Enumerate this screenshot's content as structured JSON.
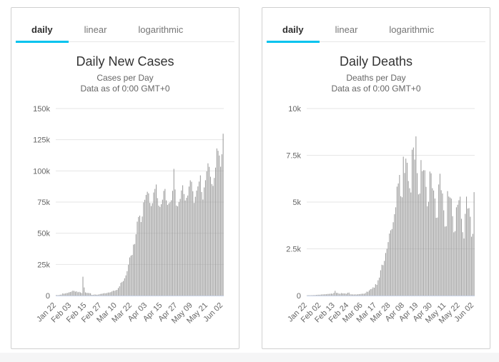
{
  "colors": {
    "accent": "#00c3ee",
    "bar": "#999999",
    "grid": "#e6e6e6",
    "axis_line": "#ccd6eb",
    "text_muted": "#666666",
    "title": "#333333",
    "tab_inactive": "#757575",
    "border": "#d0d0d0"
  },
  "panels": [
    {
      "tabs": [
        {
          "label": "daily",
          "active": true
        },
        {
          "label": "linear",
          "active": false
        },
        {
          "label": "logarithmic",
          "active": false
        }
      ]
    },
    {
      "tabs": [
        {
          "label": "daily",
          "active": true
        },
        {
          "label": "linear",
          "active": false
        },
        {
          "label": "logarithmic",
          "active": false
        }
      ]
    }
  ],
  "chart_data": [
    {
      "type": "bar",
      "title": "Daily New Cases",
      "subtitle_line1": "Cases per Day",
      "subtitle_line2": "Data as of 0:00 GMT+0",
      "xlabel": "",
      "ylabel": "",
      "ylim": [
        0,
        150000
      ],
      "grid": true,
      "legend": "none",
      "y_ticks": [
        {
          "value": 0,
          "label": "0"
        },
        {
          "value": 25000,
          "label": "25k"
        },
        {
          "value": 50000,
          "label": "50k"
        },
        {
          "value": 75000,
          "label": "75k"
        },
        {
          "value": 100000,
          "label": "100k"
        },
        {
          "value": 125000,
          "label": "125k"
        },
        {
          "value": 150000,
          "label": "150k"
        }
      ],
      "x_ticks": [
        {
          "index": 0,
          "label": "Jan 22"
        },
        {
          "index": 12,
          "label": "Feb 03"
        },
        {
          "index": 24,
          "label": "Feb 15"
        },
        {
          "index": 36,
          "label": "Feb 27"
        },
        {
          "index": 48,
          "label": "Mar 10"
        },
        {
          "index": 60,
          "label": "Mar 22"
        },
        {
          "index": 72,
          "label": "Apr 03"
        },
        {
          "index": 84,
          "label": "Apr 15"
        },
        {
          "index": 96,
          "label": "Apr 27"
        },
        {
          "index": 108,
          "label": "May 09"
        },
        {
          "index": 120,
          "label": "May 21"
        },
        {
          "index": 132,
          "label": "Jun 02"
        }
      ],
      "values": [
        500,
        260,
        470,
        700,
        790,
        1780,
        1480,
        1760,
        2000,
        2130,
        2600,
        2840,
        3240,
        3930,
        3730,
        3160,
        3420,
        2680,
        3000,
        2550,
        2020,
        15150,
        6530,
        2560,
        2150,
        2130,
        2000,
        1870,
        630,
        590,
        890,
        810,
        670,
        760,
        1050,
        1340,
        1460,
        1750,
        1960,
        1830,
        2070,
        2460,
        2470,
        2760,
        3320,
        3920,
        3800,
        4240,
        4580,
        6080,
        7490,
        10220,
        10960,
        11720,
        13900,
        16210,
        19580,
        24750,
        30600,
        32040,
        32570,
        40890,
        41380,
        49210,
        59300,
        63100,
        64100,
        58970,
        63380,
        74730,
        76850,
        80750,
        83250,
        82000,
        74320,
        71790,
        74120,
        82670,
        85550,
        89080,
        78190,
        72130,
        71090,
        73280,
        76900,
        83980,
        85530,
        76370,
        72730,
        73920,
        74900,
        76440,
        84020,
        101640,
        85130,
        72200,
        71600,
        75100,
        77520,
        84320,
        88450,
        81440,
        76230,
        78440,
        80260,
        87440,
        92420,
        91240,
        83710,
        74310,
        79240,
        84210,
        87520,
        91440,
        96420,
        83050,
        77010,
        86740,
        92510,
        99660,
        106060,
        103230,
        95300,
        89440,
        87930,
        94350,
        102610,
        117980,
        116130,
        112320,
        103350,
        113310,
        129810
      ]
    },
    {
      "type": "bar",
      "title": "Daily Deaths",
      "subtitle_line1": "Deaths per Day",
      "subtitle_line2": "Data as of 0:00 GMT+0",
      "xlabel": "",
      "ylabel": "",
      "ylim": [
        0,
        10000
      ],
      "grid": true,
      "legend": "none",
      "y_ticks": [
        {
          "value": 0,
          "label": "0"
        },
        {
          "value": 2500,
          "label": "2.5k"
        },
        {
          "value": 5000,
          "label": "5k"
        },
        {
          "value": 7500,
          "label": "7.5k"
        },
        {
          "value": 10000,
          "label": "10k"
        }
      ],
      "x_ticks": [
        {
          "index": 0,
          "label": "Jan 22"
        },
        {
          "index": 11,
          "label": "Feb 02"
        },
        {
          "index": 22,
          "label": "Feb 13"
        },
        {
          "index": 33,
          "label": "Feb 24"
        },
        {
          "index": 44,
          "label": "Mar 06"
        },
        {
          "index": 55,
          "label": "Mar 17"
        },
        {
          "index": 66,
          "label": "Mar 28"
        },
        {
          "index": 77,
          "label": "Apr 08"
        },
        {
          "index": 88,
          "label": "Apr 19"
        },
        {
          "index": 99,
          "label": "Apr 30"
        },
        {
          "index": 110,
          "label": "May 11"
        },
        {
          "index": 121,
          "label": "May 22"
        },
        {
          "index": 132,
          "label": "Jun 02"
        }
      ],
      "values": [
        17,
        9,
        16,
        15,
        24,
        26,
        26,
        38,
        43,
        46,
        45,
        58,
        64,
        66,
        72,
        73,
        86,
        89,
        97,
        108,
        97,
        146,
        254,
        143,
        142,
        106,
        98,
        136,
        116,
        119,
        112,
        97,
        150,
        160,
        71,
        67,
        63,
        58,
        67,
        58,
        72,
        76,
        84,
        95,
        102,
        99,
        133,
        208,
        203,
        279,
        341,
        360,
        439,
        424,
        610,
        575,
        818,
        962,
        1353,
        1648,
        1626,
        1855,
        2277,
        2503,
        2858,
        3318,
        3490,
        3559,
        3921,
        4351,
        4720,
        5826,
        5994,
        6450,
        5313,
        5256,
        7427,
        6554,
        7322,
        7101,
        6128,
        5740,
        5512,
        7798,
        7916,
        7270,
        8511,
        6545,
        5410,
        5454,
        7244,
        6653,
        6703,
        6698,
        5813,
        4774,
        5018,
        6633,
        6538,
        5741,
        5618,
        5188,
        4157,
        4172,
        5941,
        6515,
        5634,
        5459,
        4558,
        3690,
        3708,
        5586,
        5295,
        5243,
        5185,
        4246,
        3383,
        3446,
        4720,
        4857,
        5099,
        5290,
        4107,
        3389,
        3053,
        4371,
        5291,
        4651,
        4677,
        4217,
        3148,
        3300,
        5530
      ]
    }
  ]
}
